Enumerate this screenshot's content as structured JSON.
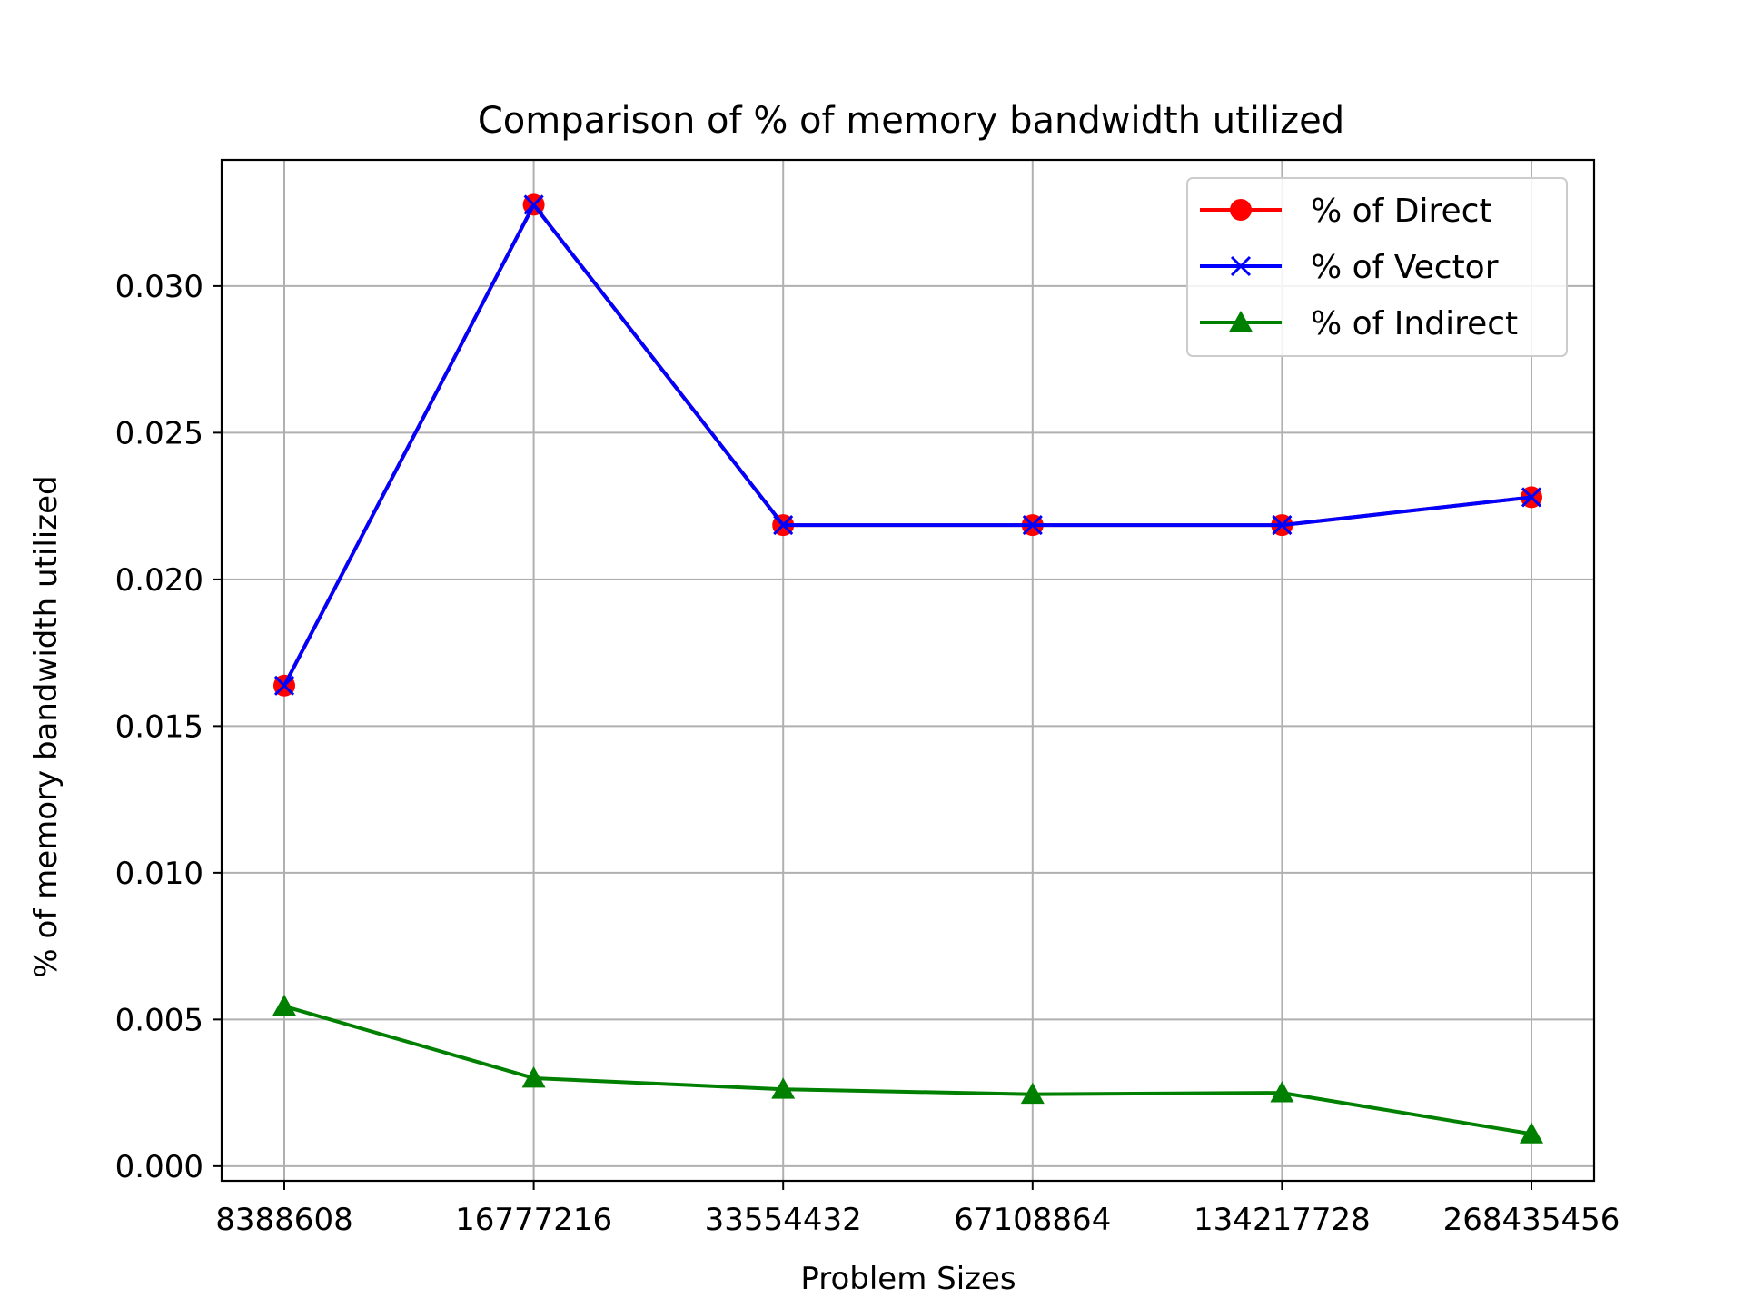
{
  "chart_data": {
    "type": "line",
    "title": "Comparison of % of memory bandwidth utilized",
    "xlabel": "Problem Sizes",
    "ylabel": "% of memory bandwidth utilized",
    "categories": [
      "8388608",
      "16777216",
      "33554432",
      "67108864",
      "134217728",
      "268435456"
    ],
    "yticks": [
      "0.000",
      "0.005",
      "0.010",
      "0.015",
      "0.020",
      "0.025",
      "0.030"
    ],
    "ylim": [
      -0.0005,
      0.0343
    ],
    "grid": true,
    "legend_position": "top-right",
    "series": [
      {
        "name": "% of Direct",
        "color": "#ff0000",
        "marker": "circle",
        "values": [
          0.01638,
          0.03277,
          0.02185,
          0.02185,
          0.02185,
          0.0228
        ]
      },
      {
        "name": "% of Vector",
        "color": "#0000ff",
        "marker": "x",
        "values": [
          0.01638,
          0.03277,
          0.02185,
          0.02185,
          0.02185,
          0.0228
        ]
      },
      {
        "name": "% of Indirect",
        "color": "#008000",
        "marker": "triangle",
        "values": [
          0.00545,
          0.003,
          0.00262,
          0.00245,
          0.0025,
          0.0011
        ]
      }
    ]
  }
}
